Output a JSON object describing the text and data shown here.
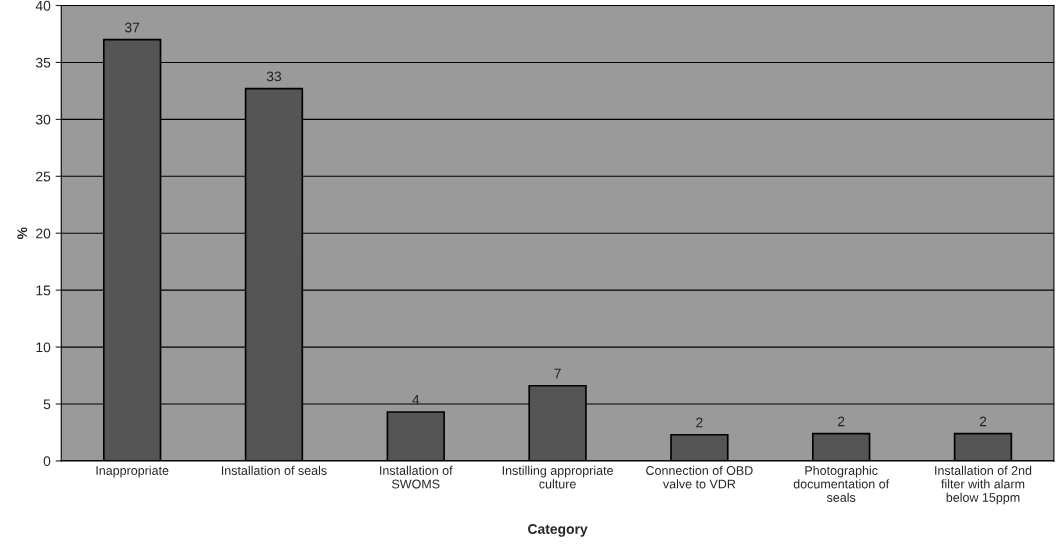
{
  "chart_data": {
    "type": "bar",
    "xlabel": "Category",
    "ylabel": "%",
    "categories": [
      "Inappropriate",
      "Installation of seals",
      "Installation of\nSWOMS",
      "Instilling appropriate\nculture",
      "Connection of OBD\nvalve to VDR",
      "Photographic\ndocumentation of\nseals",
      "Installation of 2nd\nfilter with alarm\nbelow 15ppm"
    ],
    "values": [
      37,
      32.7,
      4.3,
      6.6,
      2.3,
      2.4,
      2.4
    ],
    "value_labels": [
      "37",
      "33",
      "4",
      "7",
      "2",
      "2",
      "2"
    ],
    "color": "#555555",
    "ylim": [
      0,
      40
    ],
    "yticks": [
      0,
      5,
      10,
      15,
      20,
      25,
      30,
      35,
      40
    ],
    "grid": "y",
    "legend": false
  }
}
